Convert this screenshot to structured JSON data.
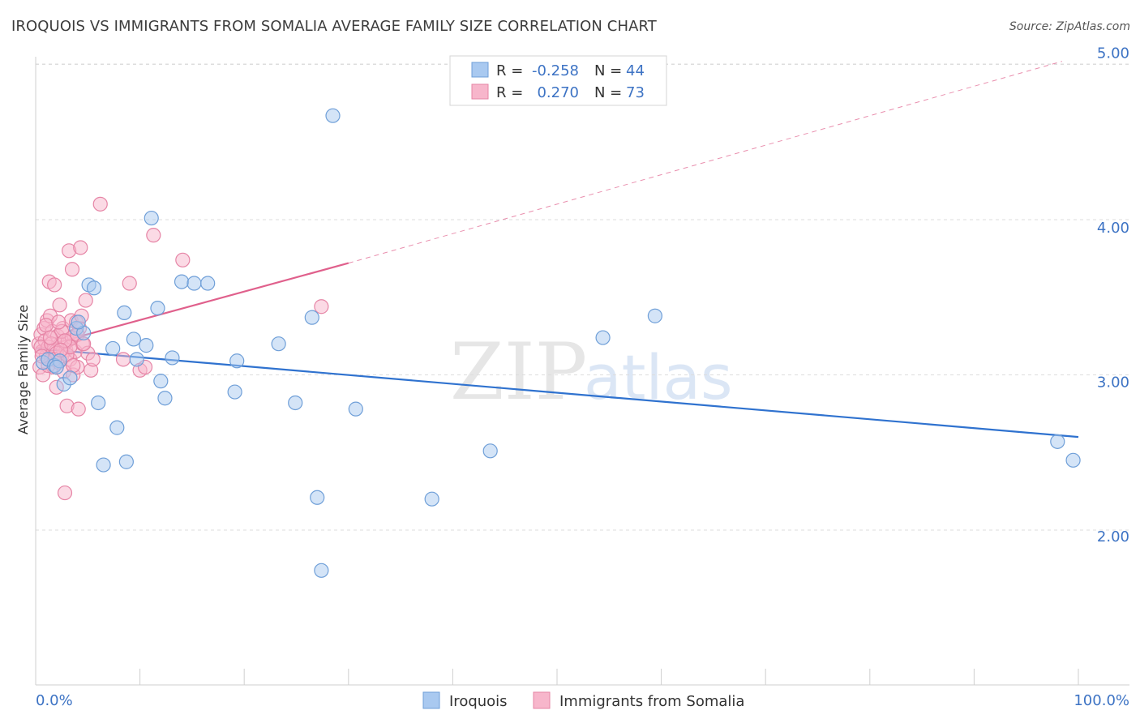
{
  "title": "IROQUOIS VS IMMIGRANTS FROM SOMALIA AVERAGE FAMILY SIZE CORRELATION CHART",
  "source": "Source: ZipAtlas.com",
  "watermark": {
    "zip": "ZIP",
    "atlas": "atlas"
  },
  "colors": {
    "blue_fill": "#a9c9f0",
    "blue_stroke": "#6f9fd8",
    "blue_line": "#2f72cf",
    "pink_fill": "#f7b6cb",
    "pink_stroke": "#e685a6",
    "pink_line": "#e0608c",
    "accent_text": "#3d73c4",
    "grid": "#dddddd"
  },
  "legend_top": [
    {
      "r_label": "R =",
      "r_value": "-0.258",
      "n_label": "N =",
      "n_value": "44"
    },
    {
      "r_label": "R =",
      "r_value": "0.270",
      "n_label": "N =",
      "n_value": "73"
    }
  ],
  "chart_data": {
    "type": "scatter",
    "ylabel": "Average Family Size",
    "xlim": [
      0,
      100
    ],
    "ylim": [
      1.0,
      5.1
    ],
    "x_tick_labels": [
      "0.0%",
      "100.0%"
    ],
    "y_ticks": [
      {
        "value": 2.0,
        "label": "2.00"
      },
      {
        "value": 3.0,
        "label": "3.00"
      },
      {
        "value": 4.0,
        "label": "4.00"
      },
      {
        "value": 5.0,
        "label": "5.00"
      }
    ],
    "grid": true,
    "legend_position": "bottom-center",
    "series": [
      {
        "name": "Iroquois",
        "color": "blue",
        "points": [
          [
            0.7,
            3.08
          ],
          [
            1.2,
            3.1
          ],
          [
            1.8,
            3.06
          ],
          [
            2.3,
            3.09
          ],
          [
            2.7,
            2.94
          ],
          [
            3.3,
            2.98
          ],
          [
            3.9,
            3.3
          ],
          [
            4.6,
            3.27
          ],
          [
            5.1,
            3.58
          ],
          [
            5.6,
            3.56
          ],
          [
            6.0,
            2.82
          ],
          [
            6.5,
            2.42
          ],
          [
            7.4,
            3.17
          ],
          [
            7.8,
            2.66
          ],
          [
            8.5,
            3.4
          ],
          [
            8.7,
            2.44
          ],
          [
            9.4,
            3.23
          ],
          [
            9.7,
            3.1
          ],
          [
            10.6,
            3.19
          ],
          [
            11.1,
            4.01
          ],
          [
            11.7,
            3.43
          ],
          [
            12.0,
            2.96
          ],
          [
            12.4,
            2.85
          ],
          [
            13.1,
            3.11
          ],
          [
            14.0,
            3.6
          ],
          [
            15.2,
            3.59
          ],
          [
            16.5,
            3.59
          ],
          [
            19.1,
            2.89
          ],
          [
            19.3,
            3.09
          ],
          [
            23.3,
            3.2
          ],
          [
            24.9,
            2.82
          ],
          [
            26.5,
            3.37
          ],
          [
            27.0,
            2.21
          ],
          [
            27.4,
            1.74
          ],
          [
            28.5,
            4.67
          ],
          [
            30.7,
            2.78
          ],
          [
            38.0,
            2.2
          ],
          [
            43.6,
            2.51
          ],
          [
            54.4,
            3.24
          ],
          [
            59.4,
            3.38
          ],
          [
            98.0,
            2.57
          ],
          [
            99.5,
            2.45
          ],
          [
            2.0,
            3.05
          ],
          [
            4.1,
            3.34
          ]
        ]
      },
      {
        "name": "Immigrants from Somalia",
        "color": "pink",
        "points": [
          [
            0.3,
            3.2
          ],
          [
            0.4,
            3.05
          ],
          [
            0.5,
            3.26
          ],
          [
            0.6,
            3.15
          ],
          [
            0.7,
            3.0
          ],
          [
            0.8,
            3.3
          ],
          [
            0.9,
            3.22
          ],
          [
            1.0,
            3.12
          ],
          [
            1.1,
            3.35
          ],
          [
            1.2,
            3.18
          ],
          [
            1.3,
            3.6
          ],
          [
            1.4,
            3.38
          ],
          [
            1.5,
            3.1
          ],
          [
            1.6,
            3.28
          ],
          [
            1.7,
            3.05
          ],
          [
            1.8,
            3.58
          ],
          [
            1.9,
            3.15
          ],
          [
            2.0,
            2.92
          ],
          [
            2.1,
            3.25
          ],
          [
            2.2,
            3.08
          ],
          [
            2.3,
            3.45
          ],
          [
            2.4,
            3.2
          ],
          [
            2.5,
            3.12
          ],
          [
            2.6,
            3.3
          ],
          [
            2.7,
            3.02
          ],
          [
            2.8,
            2.24
          ],
          [
            2.9,
            3.16
          ],
          [
            3.0,
            2.8
          ],
          [
            3.1,
            3.22
          ],
          [
            3.2,
            3.8
          ],
          [
            3.3,
            3.1
          ],
          [
            3.4,
            3.35
          ],
          [
            3.5,
            3.68
          ],
          [
            3.6,
            3.0
          ],
          [
            3.7,
            3.25
          ],
          [
            3.8,
            3.15
          ],
          [
            3.9,
            3.34
          ],
          [
            4.0,
            3.05
          ],
          [
            4.1,
            2.78
          ],
          [
            4.2,
            3.3
          ],
          [
            4.3,
            3.82
          ],
          [
            4.4,
            3.38
          ],
          [
            4.5,
            3.2
          ],
          [
            4.8,
            3.48
          ],
          [
            5.0,
            3.14
          ],
          [
            5.3,
            3.03
          ],
          [
            5.5,
            3.1
          ],
          [
            6.2,
            4.1
          ],
          [
            8.4,
            3.1
          ],
          [
            9.0,
            3.59
          ],
          [
            10.0,
            3.03
          ],
          [
            10.5,
            3.05
          ],
          [
            11.3,
            3.9
          ],
          [
            14.1,
            3.74
          ],
          [
            27.4,
            3.44
          ],
          [
            0.5,
            3.18
          ],
          [
            1.0,
            3.32
          ],
          [
            1.5,
            3.2
          ],
          [
            2.0,
            3.14
          ],
          [
            2.5,
            3.28
          ],
          [
            3.0,
            3.13
          ],
          [
            3.5,
            3.24
          ],
          [
            4.0,
            3.26
          ],
          [
            1.2,
            3.06
          ],
          [
            2.2,
            3.34
          ],
          [
            3.3,
            3.18
          ],
          [
            1.8,
            3.1
          ],
          [
            2.8,
            3.22
          ],
          [
            0.6,
            3.12
          ],
          [
            3.6,
            3.06
          ],
          [
            4.6,
            3.2
          ],
          [
            2.4,
            3.16
          ],
          [
            1.4,
            3.24
          ]
        ]
      }
    ],
    "trend_lines": [
      {
        "series": "Iroquois",
        "x0": 0,
        "y0": 3.17,
        "x1": 100,
        "y1": 2.6,
        "dashed_extension_to": null
      },
      {
        "series": "Immigrants from Somalia",
        "x0": 0,
        "y0": 3.17,
        "x1": 30,
        "y1": 3.72,
        "dashed_extension_to": [
          100,
          5.02
        ]
      }
    ]
  }
}
